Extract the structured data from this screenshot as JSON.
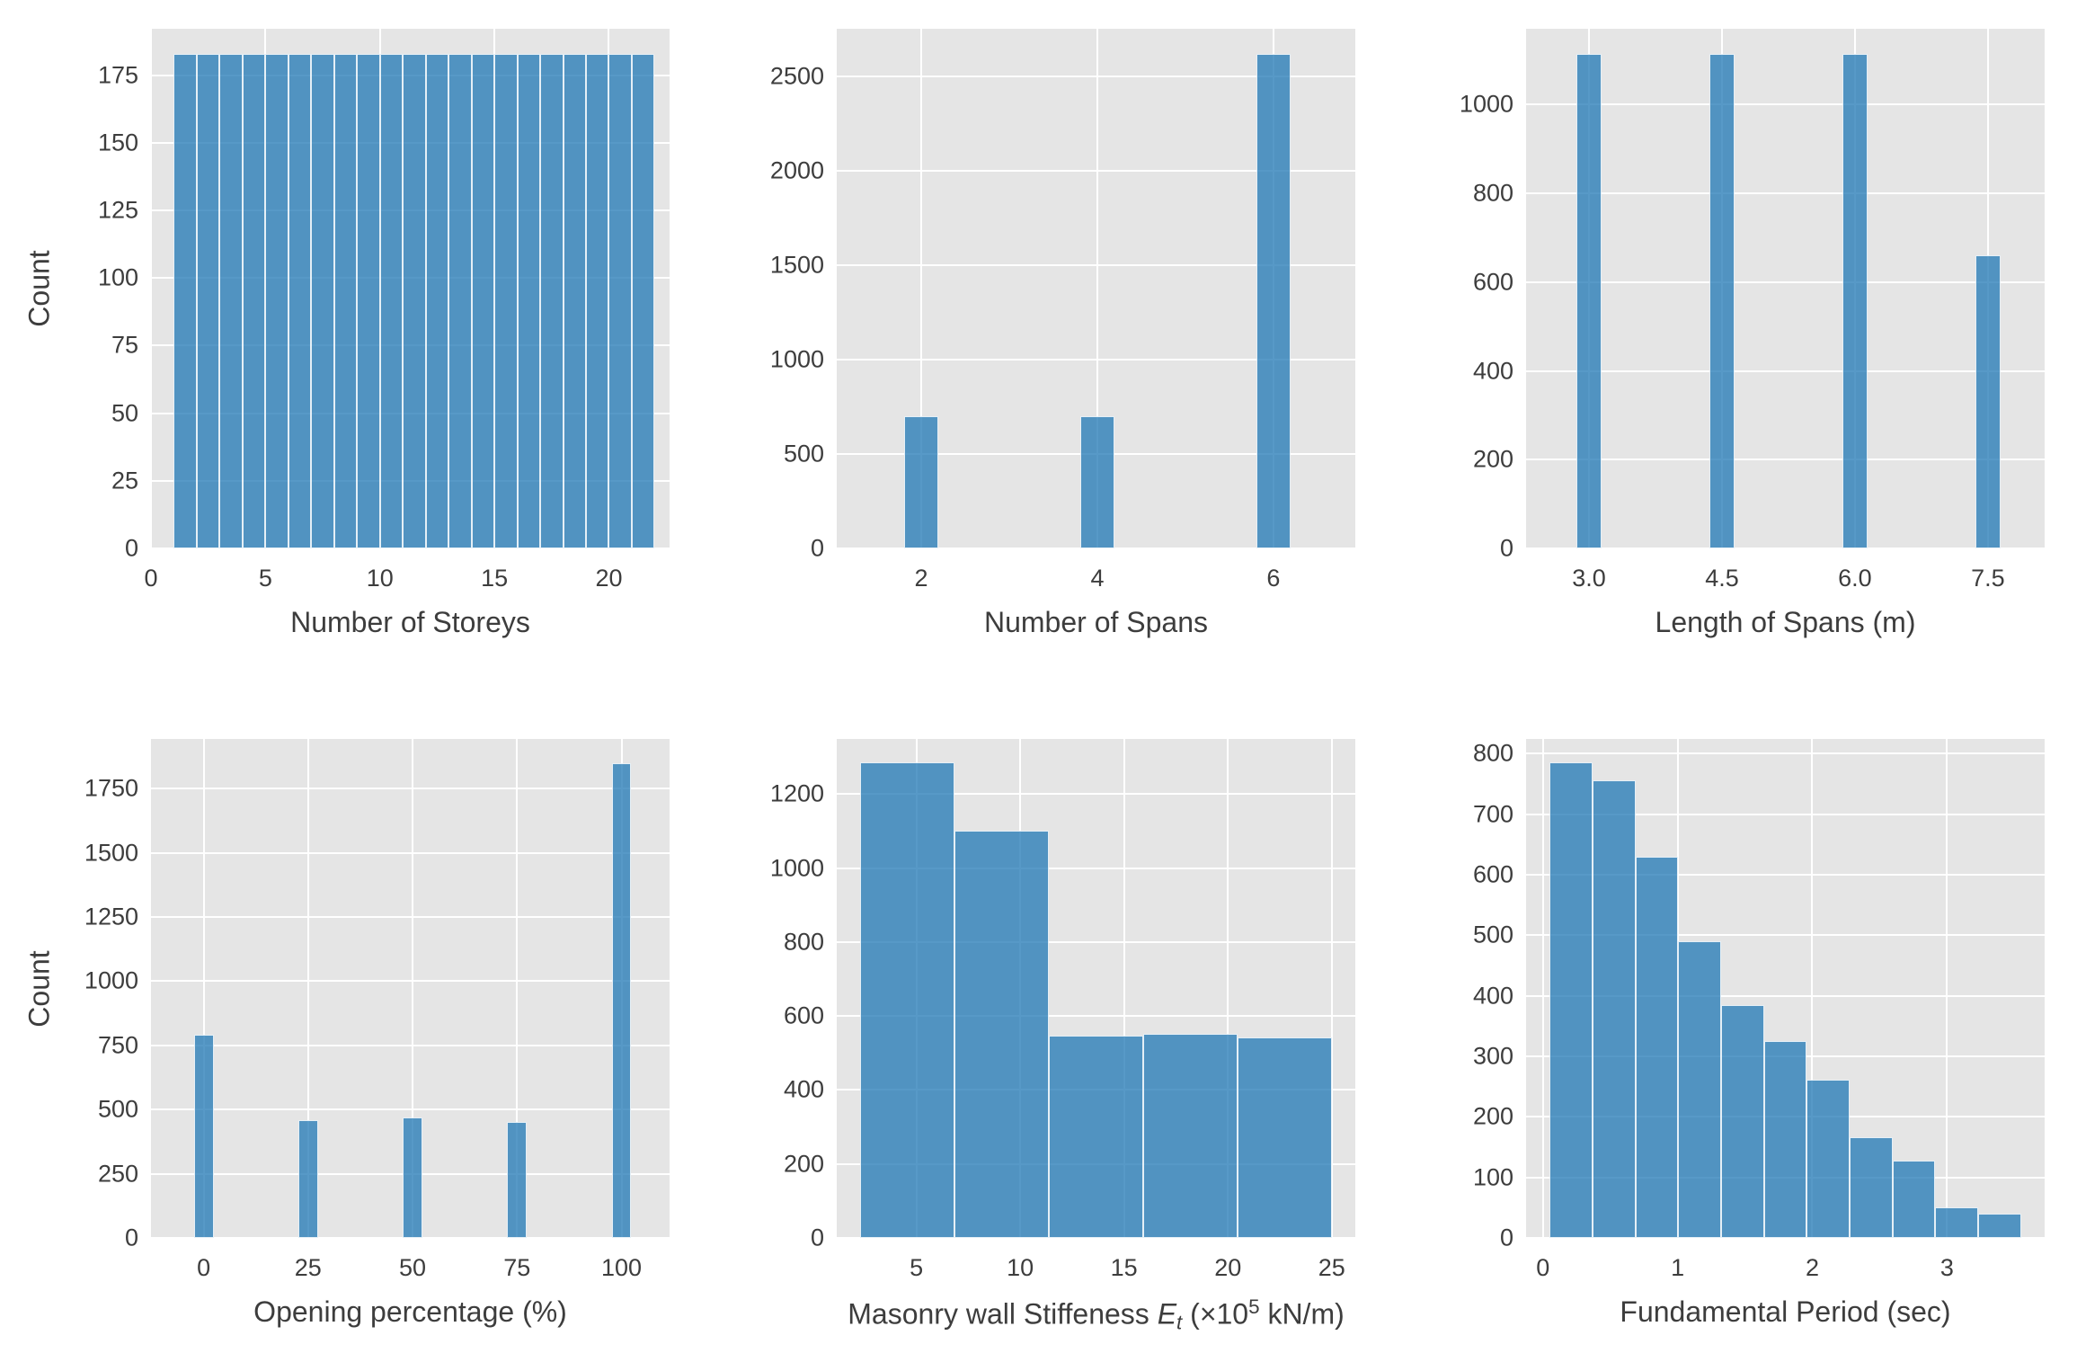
{
  "figure": {
    "background": "#ffffff",
    "panel_background": "#e5e5e5",
    "grid_color": "#ffffff",
    "bar_color": "rgba(31,119,180,0.75)",
    "bar_edge_color": "#ffffff",
    "text_color": "#3d3d3d",
    "count_label": "Count"
  },
  "chart_data": [
    {
      "type": "bar",
      "name": "number-of-storeys-histogram",
      "title": "",
      "xlabel": "Number of Storeys",
      "ylabel": "Count",
      "grid": true,
      "legend": "none",
      "xlim": [
        0,
        22.65
      ],
      "ylim": [
        0,
        192.2
      ],
      "xticks": [
        0,
        5,
        10,
        15,
        20
      ],
      "xtick_labels": [
        "0",
        "5",
        "10",
        "15",
        "20"
      ],
      "yticks": [
        0,
        25,
        50,
        75,
        100,
        125,
        150,
        175
      ],
      "bars": [
        [
          1,
          2,
          183
        ],
        [
          2,
          3,
          183
        ],
        [
          3,
          4,
          183
        ],
        [
          4,
          5,
          183
        ],
        [
          5,
          6,
          183
        ],
        [
          6,
          7,
          183
        ],
        [
          7,
          8,
          183
        ],
        [
          8,
          9,
          183
        ],
        [
          9,
          10,
          183
        ],
        [
          10,
          11,
          183
        ],
        [
          11,
          12,
          183
        ],
        [
          12,
          13,
          183
        ],
        [
          13,
          14,
          183
        ],
        [
          14,
          15,
          183
        ],
        [
          15,
          16,
          183
        ],
        [
          16,
          17,
          183
        ],
        [
          17,
          18,
          183
        ],
        [
          18,
          19,
          183
        ],
        [
          19,
          20,
          183
        ],
        [
          20,
          21,
          183
        ],
        [
          21,
          22,
          183
        ]
      ]
    },
    {
      "type": "bar",
      "name": "number-of-spans-histogram",
      "title": "",
      "xlabel": "Number of Spans",
      "ylabel": "",
      "grid": true,
      "legend": "none",
      "xlim": [
        1.04,
        6.93
      ],
      "ylim": [
        0,
        2751
      ],
      "xticks": [
        2,
        4,
        6
      ],
      "xtick_labels": [
        "2",
        "4",
        "6"
      ],
      "yticks": [
        0,
        500,
        1000,
        1500,
        2000,
        2500
      ],
      "bars": [
        [
          1.805,
          2.195,
          700
        ],
        [
          3.805,
          4.195,
          700
        ],
        [
          5.805,
          6.195,
          2620
        ]
      ]
    },
    {
      "type": "bar",
      "name": "length-of-spans-histogram",
      "title": "",
      "xlabel": "Length of Spans (m)",
      "ylabel": "",
      "grid": true,
      "legend": "none",
      "xlim": [
        2.29,
        8.14
      ],
      "ylim": [
        0,
        1171
      ],
      "xticks": [
        3.0,
        4.5,
        6.0,
        7.5
      ],
      "xtick_labels": [
        "3.0",
        "4.5",
        "6.0",
        "7.5"
      ],
      "yticks": [
        0,
        200,
        400,
        600,
        800,
        1000
      ],
      "bars": [
        [
          2.86,
          3.14,
          1115
        ],
        [
          4.36,
          4.64,
          1115
        ],
        [
          5.86,
          6.14,
          1115
        ],
        [
          7.36,
          7.64,
          660
        ]
      ]
    },
    {
      "type": "bar",
      "name": "opening-percentage-histogram",
      "title": "",
      "xlabel": "Opening percentage (%)",
      "ylabel": "Count",
      "grid": true,
      "legend": "none",
      "xlim": [
        -12.6,
        111.5
      ],
      "ylim": [
        0,
        1943
      ],
      "xticks": [
        0,
        25,
        50,
        75,
        100
      ],
      "xtick_labels": [
        "0",
        "25",
        "50",
        "75",
        "100"
      ],
      "yticks": [
        0,
        250,
        500,
        750,
        1000,
        1250,
        1500,
        1750
      ],
      "bars": [
        [
          -2.35,
          2.35,
          790
        ],
        [
          22.65,
          27.35,
          460
        ],
        [
          47.65,
          52.35,
          470
        ],
        [
          72.65,
          77.35,
          450
        ],
        [
          97.65,
          102.35,
          1850
        ]
      ]
    },
    {
      "type": "bar",
      "name": "masonry-wall-stiffness-histogram",
      "title": "",
      "xlabel_parts": [
        {
          "t": "Masonry wall Stiffeness ",
          "s": ""
        },
        {
          "t": "E",
          "s": "i"
        },
        {
          "t": "t",
          "s": "sub"
        },
        {
          "t": " (×10",
          "s": ""
        },
        {
          "t": "5",
          "s": "sup"
        },
        {
          "t": " kN/m)",
          "s": ""
        }
      ],
      "ylabel": "",
      "grid": true,
      "legend": "none",
      "xlim": [
        1.165,
        26.135
      ],
      "ylim": [
        0,
        1349
      ],
      "xticks": [
        5,
        10,
        15,
        20,
        25
      ],
      "xtick_labels": [
        "5",
        "10",
        "15",
        "20",
        "25"
      ],
      "yticks": [
        0,
        200,
        400,
        600,
        800,
        1000,
        1200
      ],
      "bars": [
        [
          2.3,
          6.84,
          1285
        ],
        [
          6.84,
          11.38,
          1100
        ],
        [
          11.38,
          15.92,
          548
        ],
        [
          15.92,
          20.46,
          552
        ],
        [
          20.46,
          25.0,
          543
        ]
      ]
    },
    {
      "type": "bar",
      "name": "fundamental-period-histogram",
      "title": "",
      "xlabel": "Fundamental Period (sec)",
      "ylabel": "",
      "grid": true,
      "legend": "none",
      "xlim": [
        -0.125,
        3.725
      ],
      "ylim": [
        0,
        824
      ],
      "xticks": [
        0,
        1,
        2,
        3
      ],
      "xtick_labels": [
        "0",
        "1",
        "2",
        "3"
      ],
      "yticks": [
        0,
        100,
        200,
        300,
        400,
        500,
        600,
        700,
        800
      ],
      "bars": [
        [
          0.05,
          0.368,
          785
        ],
        [
          0.368,
          0.686,
          755
        ],
        [
          0.686,
          1.005,
          630
        ],
        [
          1.005,
          1.323,
          490
        ],
        [
          1.323,
          1.641,
          385
        ],
        [
          1.641,
          1.959,
          325
        ],
        [
          1.959,
          2.277,
          262
        ],
        [
          2.277,
          2.595,
          167
        ],
        [
          2.595,
          2.914,
          127
        ],
        [
          2.914,
          3.232,
          50
        ],
        [
          3.232,
          3.55,
          40
        ]
      ]
    }
  ]
}
